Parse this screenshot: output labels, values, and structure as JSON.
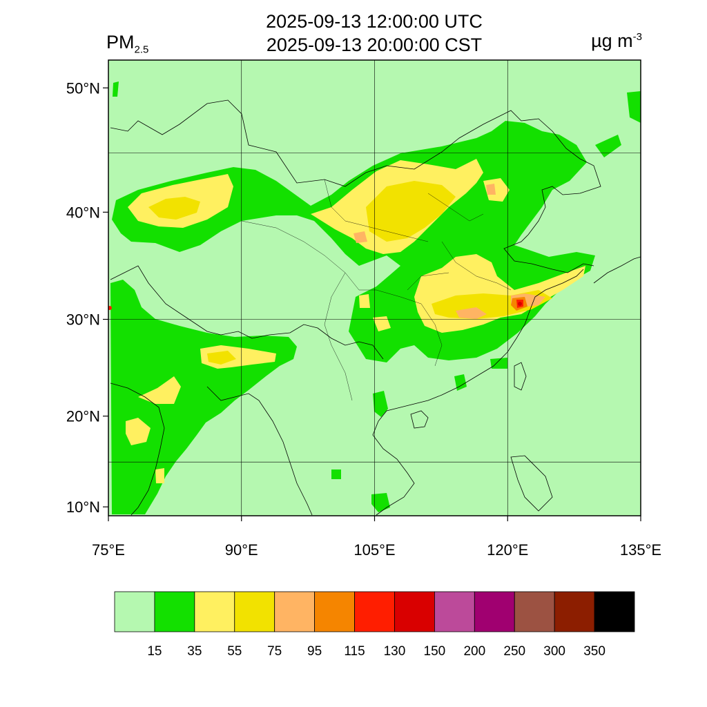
{
  "header": {
    "utc_time": "2025-09-13 12:00:00 UTC",
    "local_time": "2025-09-13 20:00:00 CST",
    "variable": "PM",
    "variable_subscript": "2.5",
    "unit": "µg m",
    "unit_superscript": "-3"
  },
  "map": {
    "lon_range": [
      75,
      135
    ],
    "lat_range": [
      9,
      52
    ],
    "projection": "mercator",
    "background_color": "#b5f8b0",
    "x_ticks": [
      {
        "lon": 75,
        "label": "75°E"
      },
      {
        "lon": 90,
        "label": "90°E"
      },
      {
        "lon": 105,
        "label": "105°E"
      },
      {
        "lon": 120,
        "label": "120°E"
      },
      {
        "lon": 135,
        "label": "135°E"
      }
    ],
    "y_ticks": [
      {
        "lat": 10,
        "label": "10°N"
      },
      {
        "lat": 20,
        "label": "20°N"
      },
      {
        "lat": 30,
        "label": "30°N"
      },
      {
        "lat": 40,
        "label": "40°N"
      },
      {
        "lat": 50,
        "label": "50°N"
      }
    ],
    "gridlines": true
  },
  "colorbar": {
    "colors": [
      "#b5f8b0",
      "#13e000",
      "#fff060",
      "#f2e200",
      "#ffb463",
      "#f58500",
      "#ff1e00",
      "#d90000",
      "#bc4a9a",
      "#a00070",
      "#9c5242",
      "#8c1e00",
      "#000000"
    ],
    "labels": [
      "15",
      "35",
      "55",
      "75",
      "95",
      "115",
      "130",
      "150",
      "200",
      "250",
      "300",
      "350"
    ]
  }
}
